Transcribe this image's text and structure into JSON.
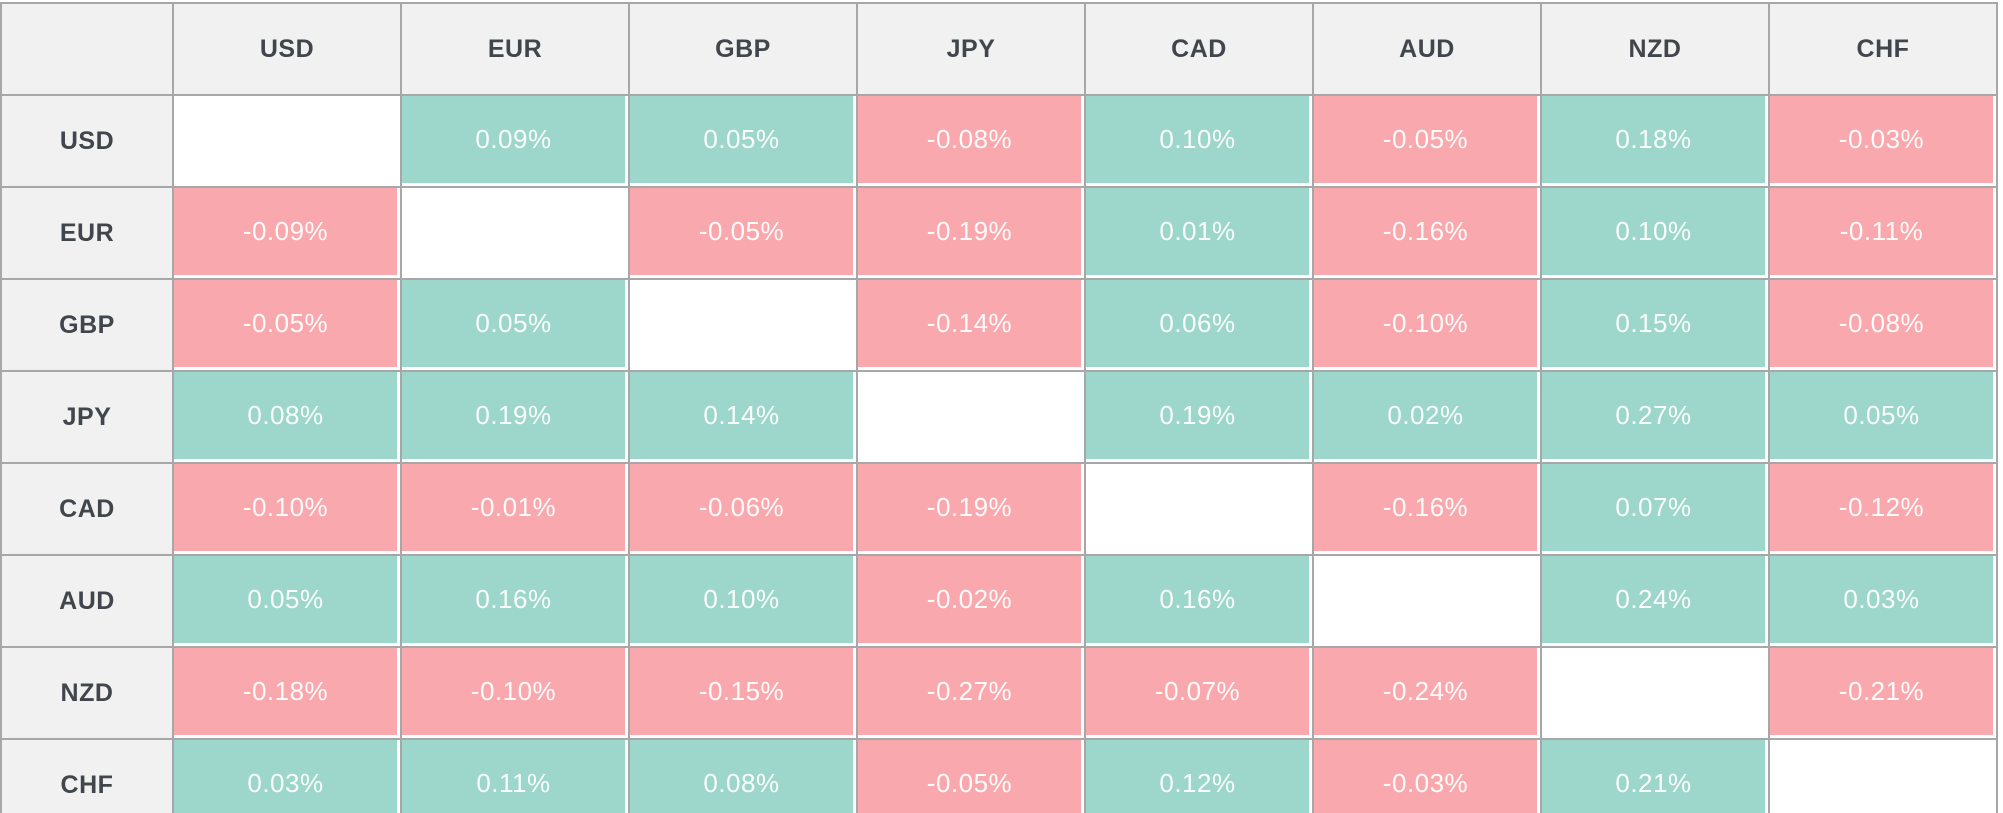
{
  "chart_data": {
    "type": "heatmap",
    "columns": [
      "USD",
      "EUR",
      "GBP",
      "JPY",
      "CAD",
      "AUD",
      "NZD",
      "CHF"
    ],
    "rows": [
      "USD",
      "EUR",
      "GBP",
      "JPY",
      "CAD",
      "AUD",
      "NZD",
      "CHF"
    ],
    "units": "%",
    "values": [
      [
        null,
        0.09,
        0.05,
        -0.08,
        0.1,
        -0.05,
        0.18,
        -0.03
      ],
      [
        -0.09,
        null,
        -0.05,
        -0.19,
        0.01,
        -0.16,
        0.1,
        -0.11
      ],
      [
        -0.05,
        0.05,
        null,
        -0.14,
        0.06,
        -0.1,
        0.15,
        -0.08
      ],
      [
        0.08,
        0.19,
        0.14,
        null,
        0.19,
        0.02,
        0.27,
        0.05
      ],
      [
        -0.1,
        -0.01,
        -0.06,
        -0.19,
        null,
        -0.16,
        0.07,
        -0.12
      ],
      [
        0.05,
        0.16,
        0.1,
        -0.02,
        0.16,
        null,
        0.24,
        0.03
      ],
      [
        -0.18,
        -0.1,
        -0.15,
        -0.27,
        -0.07,
        -0.24,
        null,
        -0.21
      ],
      [
        0.03,
        0.11,
        0.08,
        -0.05,
        0.12,
        -0.03,
        0.21,
        null
      ]
    ],
    "legend_position": "none",
    "grid": true
  },
  "table": {
    "corner_label": "",
    "column_headers": [
      "USD",
      "EUR",
      "GBP",
      "JPY",
      "CAD",
      "AUD",
      "NZD",
      "CHF"
    ],
    "rows": [
      {
        "label": "USD",
        "values": [
          "",
          "0.09%",
          "0.05%",
          "-0.08%",
          "0.10%",
          "-0.05%",
          "0.18%",
          "-0.03%"
        ]
      },
      {
        "label": "EUR",
        "values": [
          "-0.09%",
          "",
          "-0.05%",
          "-0.19%",
          "0.01%",
          "-0.16%",
          "0.10%",
          "-0.11%"
        ]
      },
      {
        "label": "GBP",
        "values": [
          "-0.05%",
          "0.05%",
          "",
          "-0.14%",
          "0.06%",
          "-0.10%",
          "0.15%",
          "-0.08%"
        ]
      },
      {
        "label": "JPY",
        "values": [
          "0.08%",
          "0.19%",
          "0.14%",
          "",
          "0.19%",
          "0.02%",
          "0.27%",
          "0.05%"
        ]
      },
      {
        "label": "CAD",
        "values": [
          "-0.10%",
          "-0.01%",
          "-0.06%",
          "-0.19%",
          "",
          "-0.16%",
          "0.07%",
          "-0.12%"
        ]
      },
      {
        "label": "AUD",
        "values": [
          "0.05%",
          "0.16%",
          "0.10%",
          "-0.02%",
          "0.16%",
          "",
          "0.24%",
          "0.03%"
        ]
      },
      {
        "label": "NZD",
        "values": [
          "-0.18%",
          "-0.10%",
          "-0.15%",
          "-0.27%",
          "-0.07%",
          "-0.24%",
          "",
          "-0.21%"
        ]
      },
      {
        "label": "CHF",
        "values": [
          "0.03%",
          "0.11%",
          "0.08%",
          "-0.05%",
          "0.12%",
          "-0.03%",
          "0.21%",
          ""
        ]
      }
    ]
  },
  "colors": {
    "positive_cell": "#9dd6ca",
    "negative_cell": "#f9a9ad",
    "header_background": "#f1f1f1",
    "grid_border": "#a7a7a7",
    "header_text": "#41454c",
    "value_text": "#ffffff"
  }
}
